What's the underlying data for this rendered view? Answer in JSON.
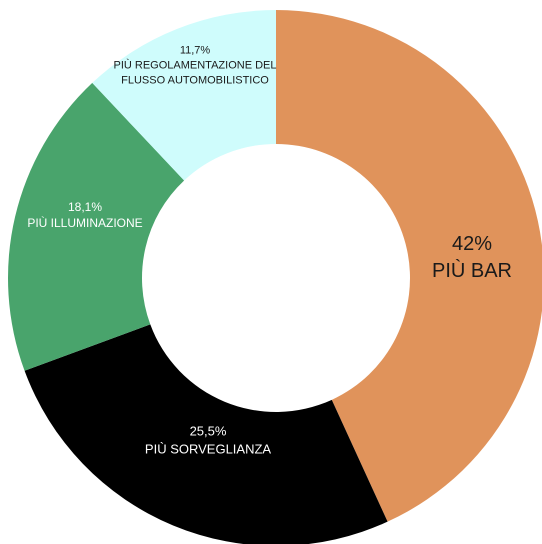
{
  "chart_data": {
    "type": "donut",
    "categories": [
      "PIÙ BAR",
      "PIÙ SORVEGLIANZA",
      "PIÙ ILLUMINAZIONE",
      "PIÙ REGOLAMENTAZIONE DEL FLUSSO AUTOMOBILISTICO"
    ],
    "values": [
      42,
      25.5,
      18.1,
      11.7
    ],
    "value_labels": [
      "42%",
      "25,5%",
      "18,1%",
      "11,7%"
    ],
    "colors": [
      "#e0935b",
      "#000000",
      "#49a46c",
      "#cffcfc"
    ]
  }
}
